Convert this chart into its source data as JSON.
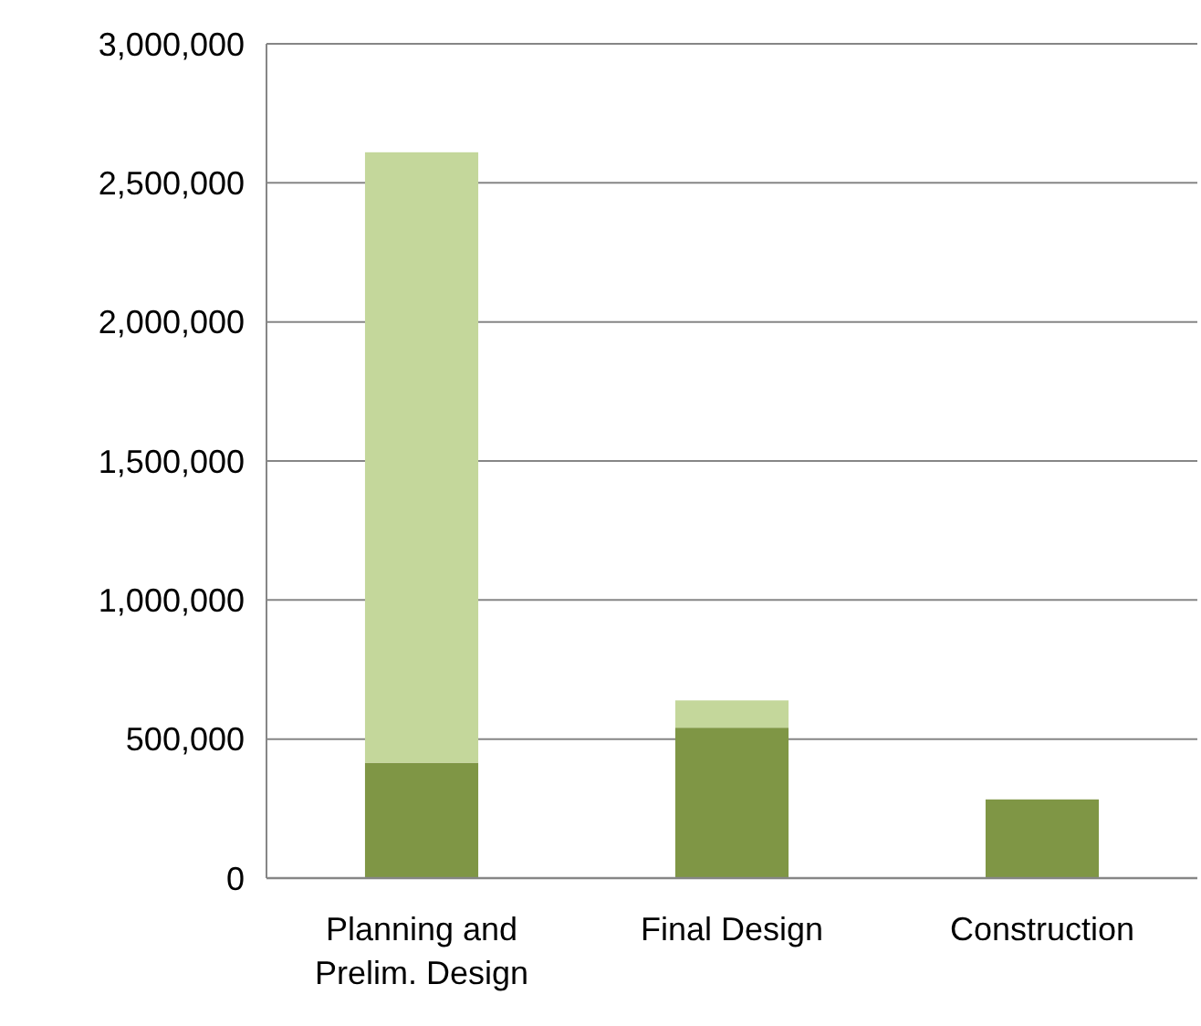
{
  "chart_data": {
    "type": "bar",
    "stacked": true,
    "categories": [
      "Planning and Prelim. Design",
      "Final Design",
      "Construction"
    ],
    "series": [
      {
        "color": "#7f9645",
        "values": [
          415000,
          541000,
          283000
        ]
      },
      {
        "color": "#c4d79b",
        "values": [
          2195000,
          98000,
          null
        ]
      }
    ],
    "ylim": [
      0,
      3000000
    ],
    "yticks": [
      {
        "value": 0,
        "label": "0"
      },
      {
        "value": 500000,
        "label": "500,000"
      },
      {
        "value": 1000000,
        "label": "1,000,000"
      },
      {
        "value": 1500000,
        "label": "1,500,000"
      },
      {
        "value": 2000000,
        "label": "2,000,000"
      },
      {
        "value": 2500000,
        "label": "2,500,000"
      },
      {
        "value": 3000000,
        "label": "3,000,000"
      }
    ],
    "grid": "y"
  }
}
